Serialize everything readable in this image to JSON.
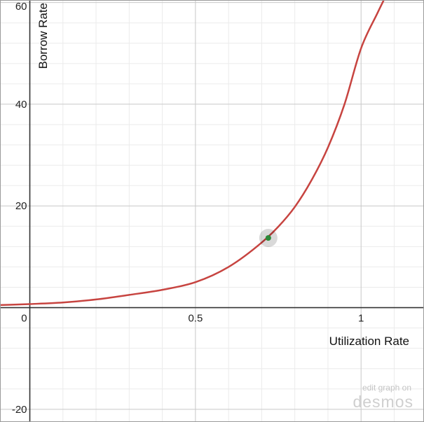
{
  "chart_data": {
    "type": "line",
    "title": "",
    "xlabel": "Utilization Rate",
    "ylabel": "Borrow Rate",
    "xlim": [
      -0.09,
      1.19
    ],
    "ylim": [
      -22.5,
      60.5
    ],
    "grid": true,
    "x_ticks": [
      {
        "value": 0.5,
        "label": "0.5"
      },
      {
        "value": 1,
        "label": "1"
      }
    ],
    "y_ticks": [
      {
        "value": -20,
        "label": "-20"
      },
      {
        "value": 20,
        "label": "20"
      },
      {
        "value": 40,
        "label": "40"
      },
      {
        "value": 60,
        "label": "60"
      }
    ],
    "origin_label": "0",
    "series": [
      {
        "color": "#c74440",
        "x": [
          -0.09,
          0,
          0.1,
          0.2,
          0.3,
          0.4,
          0.5,
          0.6,
          0.7,
          0.75,
          0.8,
          0.85,
          0.9,
          0.95,
          1.0,
          1.05,
          1.08
        ],
        "y": [
          0.5,
          0.7,
          1.0,
          1.6,
          2.5,
          3.5,
          5.0,
          8.0,
          12.8,
          15.9,
          19.8,
          25.0,
          31.5,
          40.0,
          51.0,
          58.0,
          62.0
        ]
      }
    ],
    "highlighted_point": {
      "x": 0.72,
      "y": 13.7,
      "color": "#2d8a3a"
    }
  },
  "watermark": {
    "line1": "edit graph on",
    "line2": "desmos"
  }
}
